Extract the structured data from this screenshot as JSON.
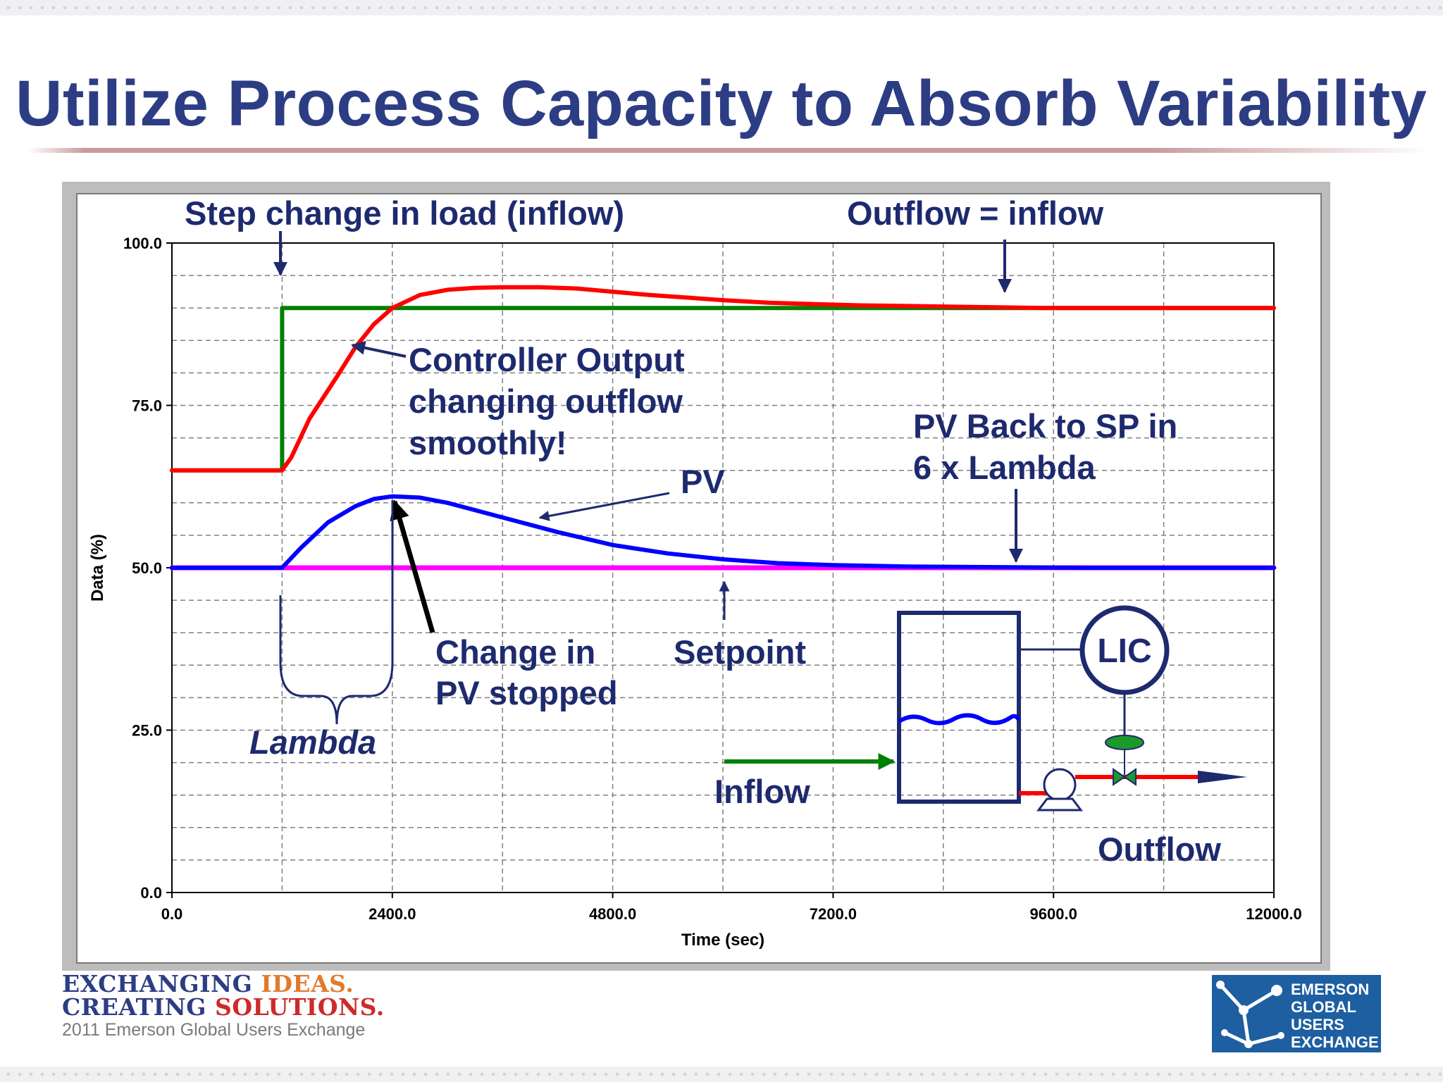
{
  "title": "Utilize Process Capacity to Absorb Variability",
  "colors": {
    "title": "#2d3d84",
    "annotation": "#1e2a6e",
    "controller_output": "#ff0000",
    "inflow_step": "#008000",
    "pv": "#0000ff",
    "setpoint": "#ff00ff"
  },
  "chart_data": {
    "type": "line",
    "xlabel": "Time (sec)",
    "ylabel": "Data (%)",
    "xlim": [
      0,
      12000
    ],
    "ylim": [
      0,
      100
    ],
    "xticks": [
      "0.0",
      "2400.0",
      "4800.0",
      "7200.0",
      "9600.0",
      "12000.0"
    ],
    "yticks": [
      "0.0",
      "25.0",
      "50.0",
      "75.0",
      "100.0"
    ],
    "grid": true,
    "series": [
      {
        "name": "Controller Output",
        "color": "#ff0000",
        "x": [
          0,
          1200,
          1300,
          1500,
          1800,
          2000,
          2200,
          2400,
          2700,
          3000,
          3300,
          3600,
          4000,
          4400,
          4800,
          5200,
          5600,
          6000,
          6500,
          7000,
          7500,
          8000,
          8500,
          9000,
          9500,
          10000,
          10500,
          11000,
          11500,
          12000
        ],
        "y": [
          65,
          65,
          67,
          73,
          79.5,
          84,
          87.5,
          90,
          92,
          92.8,
          93.1,
          93.2,
          93.2,
          93,
          92.5,
          92,
          91.6,
          91.2,
          90.8,
          90.6,
          90.4,
          90.3,
          90.2,
          90.1,
          90,
          90,
          90,
          90,
          90,
          90
        ]
      },
      {
        "name": "Inflow",
        "color": "#008000",
        "x": [
          0,
          1200,
          1200,
          12000
        ],
        "y": [
          65,
          65,
          90,
          90
        ]
      },
      {
        "name": "PV",
        "color": "#0000ff",
        "x": [
          0,
          1200,
          1400,
          1700,
          2000,
          2200,
          2400,
          2700,
          3000,
          3400,
          3800,
          4200,
          4800,
          5400,
          6000,
          6600,
          7200,
          8000,
          9000,
          10000,
          11000,
          12000
        ],
        "y": [
          50,
          50,
          53,
          57,
          59.5,
          60.6,
          61,
          60.8,
          60,
          58.5,
          57,
          55.5,
          53.5,
          52.2,
          51.3,
          50.7,
          50.4,
          50.2,
          50.1,
          50,
          50,
          50
        ]
      },
      {
        "name": "Setpoint",
        "color": "#ff00ff",
        "x": [
          0,
          12000
        ],
        "y": [
          50,
          50
        ]
      }
    ],
    "annotations": {
      "step_change": "Step change in load (inflow)",
      "outflow_equals": "Outflow = inflow",
      "controller_line1": "Controller Output",
      "controller_line2": "changing outflow",
      "controller_line3": "smoothly!",
      "pv_back_line1": "PV Back to SP in",
      "pv_back_line2": "6 x Lambda",
      "pv_label": "PV",
      "change_line1": "Change in",
      "change_line2": "PV stopped",
      "setpoint_label": "Setpoint",
      "lambda_label": "Lambda",
      "lic_label": "LIC",
      "inflow_label": "Inflow",
      "outflow_label": "Outflow"
    }
  },
  "footer": {
    "line1_part1": "EXCHANGING",
    "line1_part2": "IDEAS.",
    "line2_part1": "CREATING",
    "line2_part2": "SOLUTIONS.",
    "subtitle": "2011 Emerson Global Users Exchange"
  },
  "brand_logo": {
    "line1": "EMERSON",
    "line2": "GLOBAL",
    "line3": "USERS",
    "line4": "EXCHANGE"
  }
}
